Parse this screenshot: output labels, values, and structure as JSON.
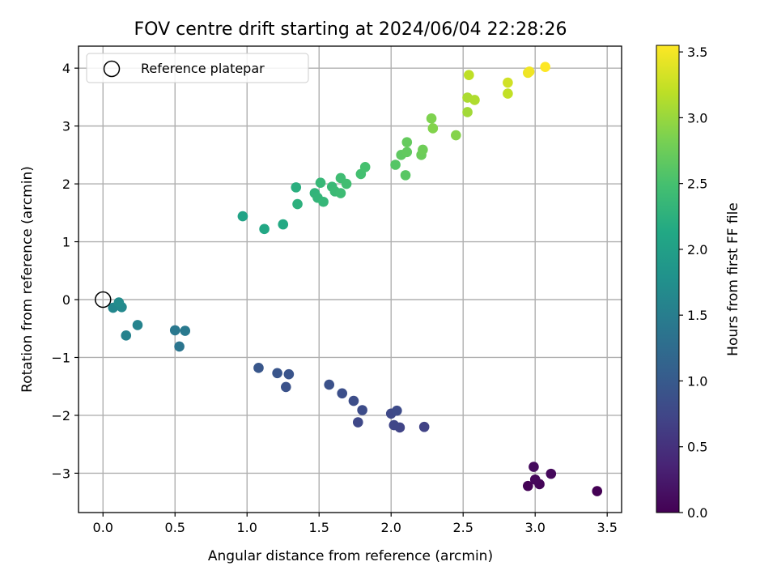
{
  "chart_data": {
    "type": "scatter",
    "title": "FOV centre drift starting at 2024/06/04 22:28:26",
    "xlabel": "Angular distance from reference (arcmin)",
    "ylabel": "Rotation from reference (arcmin)",
    "xlim": [
      -0.17,
      3.6
    ],
    "ylim": [
      -3.68,
      4.38
    ],
    "xticks": [
      0.0,
      0.5,
      1.0,
      1.5,
      2.0,
      2.5,
      3.0,
      3.5
    ],
    "xtick_labels": [
      "0.0",
      "0.5",
      "1.0",
      "1.5",
      "2.0",
      "2.5",
      "3.0",
      "3.5"
    ],
    "yticks": [
      -3,
      -2,
      -1,
      0,
      1,
      2,
      3,
      4
    ],
    "ytick_labels": [
      "−3",
      "−2",
      "−1",
      "0",
      "1",
      "2",
      "3",
      "4"
    ],
    "grid": true,
    "legend": {
      "placement": "upper-left",
      "entries": [
        "Reference platepar"
      ]
    },
    "reference_point": {
      "x": 0.0,
      "y": 0.0
    },
    "colorbar": {
      "label": "Hours from first FF file",
      "range": [
        0.0,
        3.55
      ],
      "colormap": "viridis",
      "ticks": [
        0.0,
        0.5,
        1.0,
        1.5,
        2.0,
        2.5,
        3.0,
        3.5
      ],
      "tick_labels": [
        "0.0",
        "0.5",
        "1.0",
        "1.5",
        "2.0",
        "2.5",
        "3.0",
        "3.5"
      ]
    },
    "points": [
      {
        "x": 3.43,
        "y": -3.31,
        "hours": 0.0
      },
      {
        "x": 2.95,
        "y": -3.22,
        "hours": 0.02
      },
      {
        "x": 3.03,
        "y": -3.19,
        "hours": 0.04
      },
      {
        "x": 3.0,
        "y": -3.11,
        "hours": 0.06
      },
      {
        "x": 3.11,
        "y": -3.01,
        "hours": 0.08
      },
      {
        "x": 2.99,
        "y": -2.89,
        "hours": 0.1
      },
      {
        "x": 2.23,
        "y": -2.2,
        "hours": 0.7
      },
      {
        "x": 2.06,
        "y": -2.21,
        "hours": 0.72
      },
      {
        "x": 2.02,
        "y": -2.17,
        "hours": 0.74
      },
      {
        "x": 1.77,
        "y": -2.12,
        "hours": 0.76
      },
      {
        "x": 2.0,
        "y": -1.97,
        "hours": 0.78
      },
      {
        "x": 2.04,
        "y": -1.92,
        "hours": 0.8
      },
      {
        "x": 1.8,
        "y": -1.91,
        "hours": 0.82
      },
      {
        "x": 1.74,
        "y": -1.75,
        "hours": 0.84
      },
      {
        "x": 1.66,
        "y": -1.62,
        "hours": 0.86
      },
      {
        "x": 1.57,
        "y": -1.47,
        "hours": 0.88
      },
      {
        "x": 1.27,
        "y": -1.51,
        "hours": 0.9
      },
      {
        "x": 1.29,
        "y": -1.29,
        "hours": 0.92
      },
      {
        "x": 1.21,
        "y": -1.27,
        "hours": 0.94
      },
      {
        "x": 1.08,
        "y": -1.18,
        "hours": 0.96
      },
      {
        "x": 0.53,
        "y": -0.81,
        "hours": 1.38
      },
      {
        "x": 0.5,
        "y": -0.53,
        "hours": 1.42
      },
      {
        "x": 0.57,
        "y": -0.54,
        "hours": 1.44
      },
      {
        "x": 0.16,
        "y": -0.62,
        "hours": 1.56
      },
      {
        "x": 0.24,
        "y": -0.44,
        "hours": 1.58
      },
      {
        "x": 0.07,
        "y": -0.14,
        "hours": 1.64
      },
      {
        "x": 0.13,
        "y": -0.13,
        "hours": 1.66
      },
      {
        "x": 0.11,
        "y": -0.05,
        "hours": 1.7
      },
      {
        "x": 0.97,
        "y": 1.44,
        "hours": 2.05
      },
      {
        "x": 1.12,
        "y": 1.22,
        "hours": 2.12
      },
      {
        "x": 1.25,
        "y": 1.3,
        "hours": 2.15
      },
      {
        "x": 1.34,
        "y": 1.94,
        "hours": 2.22
      },
      {
        "x": 1.35,
        "y": 1.65,
        "hours": 2.26
      },
      {
        "x": 1.47,
        "y": 1.84,
        "hours": 2.3
      },
      {
        "x": 1.49,
        "y": 1.76,
        "hours": 2.32
      },
      {
        "x": 1.53,
        "y": 1.69,
        "hours": 2.34
      },
      {
        "x": 1.51,
        "y": 2.02,
        "hours": 2.36
      },
      {
        "x": 1.59,
        "y": 1.95,
        "hours": 2.38
      },
      {
        "x": 1.61,
        "y": 1.87,
        "hours": 2.4
      },
      {
        "x": 1.65,
        "y": 1.84,
        "hours": 2.42
      },
      {
        "x": 1.65,
        "y": 2.1,
        "hours": 2.44
      },
      {
        "x": 1.69,
        "y": 2.0,
        "hours": 2.46
      },
      {
        "x": 1.79,
        "y": 2.17,
        "hours": 2.48
      },
      {
        "x": 1.82,
        "y": 2.29,
        "hours": 2.5
      },
      {
        "x": 2.03,
        "y": 2.33,
        "hours": 2.6
      },
      {
        "x": 2.1,
        "y": 2.15,
        "hours": 2.62
      },
      {
        "x": 2.07,
        "y": 2.5,
        "hours": 2.66
      },
      {
        "x": 2.11,
        "y": 2.55,
        "hours": 2.68
      },
      {
        "x": 2.11,
        "y": 2.72,
        "hours": 2.7
      },
      {
        "x": 2.21,
        "y": 2.5,
        "hours": 2.74
      },
      {
        "x": 2.22,
        "y": 2.59,
        "hours": 2.76
      },
      {
        "x": 2.28,
        "y": 3.13,
        "hours": 2.86
      },
      {
        "x": 2.29,
        "y": 2.96,
        "hours": 2.88
      },
      {
        "x": 2.45,
        "y": 2.84,
        "hours": 2.9
      },
      {
        "x": 2.53,
        "y": 3.24,
        "hours": 3.05
      },
      {
        "x": 2.53,
        "y": 3.49,
        "hours": 3.1
      },
      {
        "x": 2.58,
        "y": 3.45,
        "hours": 3.12
      },
      {
        "x": 2.54,
        "y": 3.88,
        "hours": 3.2
      },
      {
        "x": 2.81,
        "y": 3.56,
        "hours": 3.22
      },
      {
        "x": 2.81,
        "y": 3.75,
        "hours": 3.3
      },
      {
        "x": 2.95,
        "y": 3.92,
        "hours": 3.45
      },
      {
        "x": 2.96,
        "y": 3.94,
        "hours": 3.48
      },
      {
        "x": 3.07,
        "y": 4.02,
        "hours": 3.55
      }
    ]
  }
}
